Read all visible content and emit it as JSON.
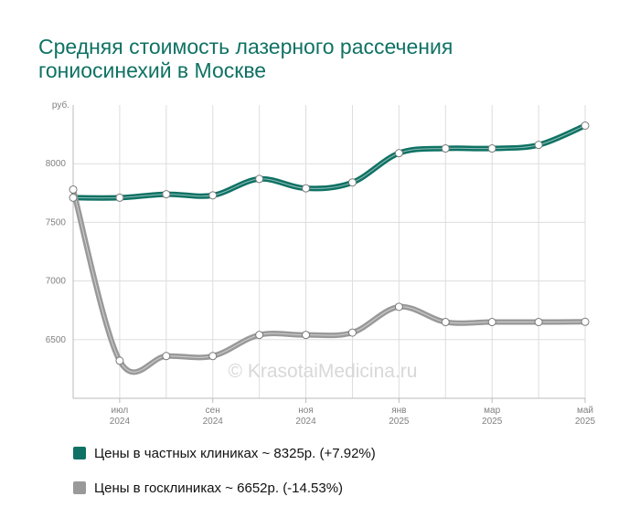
{
  "title": "Средняя стоимость лазерного рассечения гониосинехий в Москве",
  "watermark": "© KrasotaiMedicina.ru",
  "colors": {
    "private": "#0f7264",
    "public": "#999999",
    "grid": "#dddddd",
    "text": "#808080"
  },
  "legend": [
    {
      "label": "Цены в частных клиниках ~ 8325р. (+7.92%)",
      "color": "#0f7264"
    },
    {
      "label": "Цены в госклиниках ~ 6652р. (-14.53%)",
      "color": "#999999"
    }
  ],
  "chart_data": {
    "type": "line",
    "ylabel": "руб.",
    "ylim": [
      6000,
      8500
    ],
    "yticks": [
      "8000",
      "7500",
      "7000",
      "6500"
    ],
    "ytick_values": [
      8000,
      7500,
      7000,
      6500
    ],
    "xtick_labels": [
      [
        "июл",
        "2024"
      ],
      [
        "сен",
        "2024"
      ],
      [
        "ноя",
        "2024"
      ],
      [
        "янв",
        "2025"
      ],
      [
        "мар",
        "2025"
      ],
      [
        "май",
        "2025"
      ]
    ],
    "xtick_months": [
      1,
      3,
      5,
      7,
      9,
      11
    ],
    "x_months": [
      0,
      1,
      2,
      3,
      4,
      5,
      6,
      7,
      8,
      9,
      10,
      11
    ],
    "series": [
      {
        "name": "Цены в частных клиниках",
        "color": "#0f7264",
        "values": [
          7710,
          7710,
          7740,
          7730,
          7870,
          7790,
          7840,
          8090,
          8130,
          8130,
          8160,
          8325
        ]
      },
      {
        "name": "Цены в госклиниках",
        "color": "#999999",
        "values": [
          7780,
          6320,
          6360,
          6360,
          6540,
          6540,
          6560,
          6780,
          6650,
          6650,
          6650,
          6652
        ]
      }
    ],
    "grid": true
  }
}
